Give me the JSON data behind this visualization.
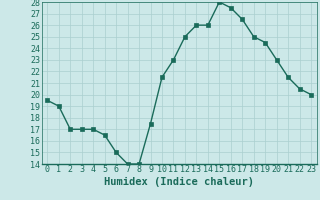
{
  "x": [
    0,
    1,
    2,
    3,
    4,
    5,
    6,
    7,
    8,
    9,
    10,
    11,
    12,
    13,
    14,
    15,
    16,
    17,
    18,
    19,
    20,
    21,
    22,
    23
  ],
  "y": [
    19.5,
    19.0,
    17.0,
    17.0,
    17.0,
    16.5,
    15.0,
    14.0,
    14.0,
    17.5,
    21.5,
    23.0,
    25.0,
    26.0,
    26.0,
    28.0,
    27.5,
    26.5,
    25.0,
    24.5,
    23.0,
    21.5,
    20.5,
    20.0
  ],
  "line_color": "#1a6b5a",
  "marker": "s",
  "marker_size": 2.5,
  "bg_color": "#cce8e8",
  "grid_color": "#aacfcf",
  "xlabel": "Humidex (Indice chaleur)",
  "ylim": [
    14,
    28
  ],
  "xlim": [
    -0.5,
    23.5
  ],
  "yticks": [
    14,
    15,
    16,
    17,
    18,
    19,
    20,
    21,
    22,
    23,
    24,
    25,
    26,
    27,
    28
  ],
  "xticks": [
    0,
    1,
    2,
    3,
    4,
    5,
    6,
    7,
    8,
    9,
    10,
    11,
    12,
    13,
    14,
    15,
    16,
    17,
    18,
    19,
    20,
    21,
    22,
    23
  ],
  "xlabel_fontsize": 7.5,
  "tick_fontsize": 6.0,
  "tick_color": "#1a6b5a",
  "spine_color": "#1a6b5a",
  "linewidth": 1.0
}
